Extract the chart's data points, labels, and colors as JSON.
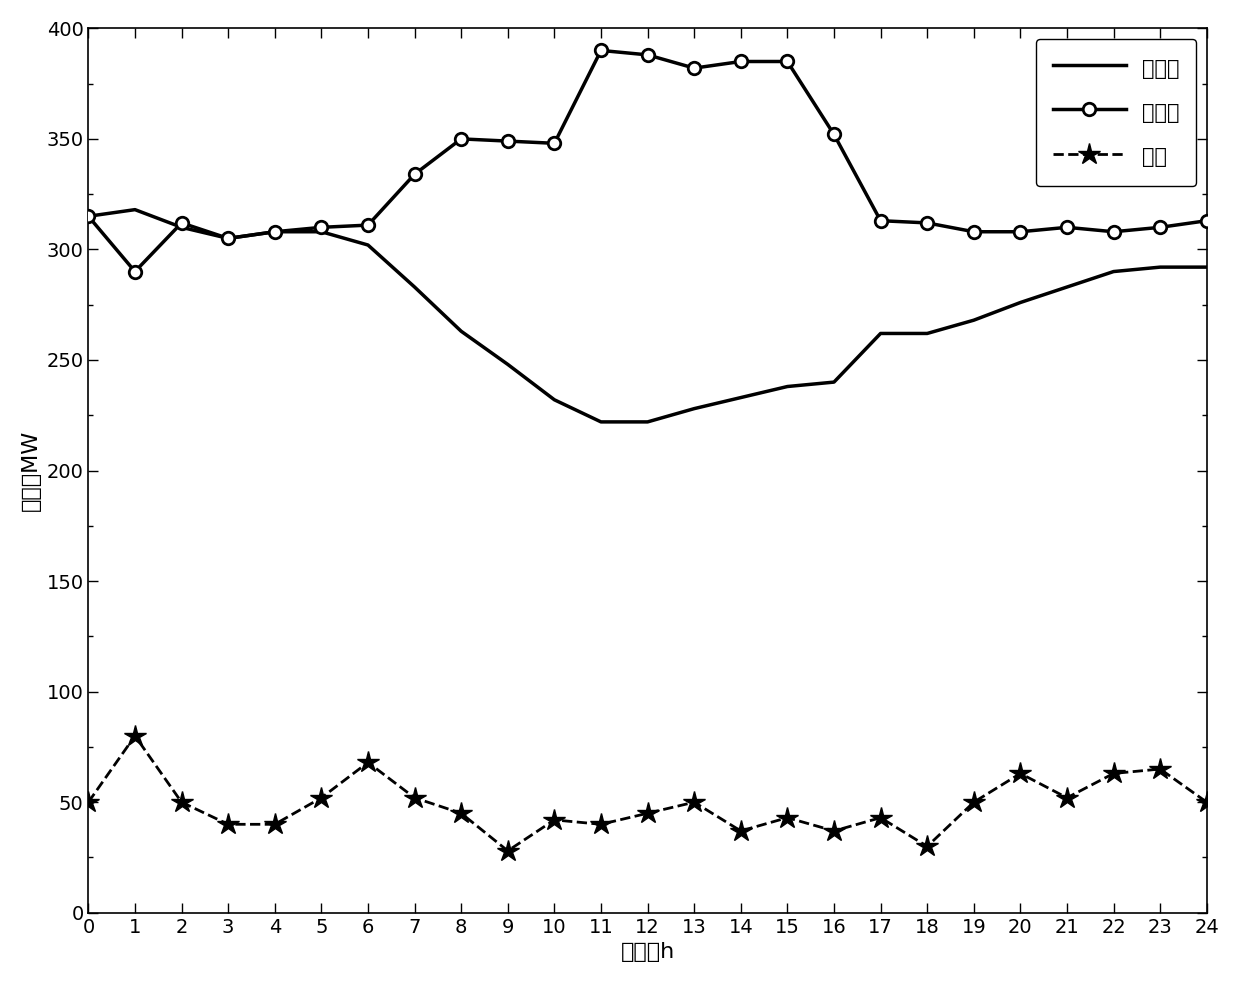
{
  "x": [
    0,
    1,
    2,
    3,
    4,
    5,
    6,
    7,
    8,
    9,
    10,
    11,
    12,
    13,
    14,
    15,
    16,
    17,
    18,
    19,
    20,
    21,
    22,
    23,
    24
  ],
  "heat_load": [
    315,
    318,
    310,
    305,
    308,
    308,
    302,
    283,
    263,
    248,
    232,
    222,
    222,
    228,
    233,
    238,
    240,
    262,
    262,
    268,
    276,
    283,
    290,
    292,
    292
  ],
  "elec_load": [
    315,
    290,
    312,
    305,
    308,
    310,
    311,
    334,
    350,
    349,
    348,
    390,
    388,
    382,
    385,
    385,
    352,
    313,
    312,
    308,
    308,
    310,
    308,
    310,
    313
  ],
  "wind_power": [
    50,
    80,
    50,
    40,
    40,
    52,
    68,
    52,
    45,
    28,
    42,
    40,
    45,
    50,
    37,
    43,
    37,
    43,
    30,
    50,
    63,
    52,
    63,
    65,
    50
  ],
  "ylabel": "功率／MW",
  "xlabel": "时间／h",
  "legend_heat": "热负荷",
  "legend_elec": "电负荷",
  "legend_wind": "风电",
  "ylim": [
    0,
    400
  ],
  "xlim": [
    0,
    24
  ],
  "yticks": [
    0,
    50,
    100,
    150,
    200,
    250,
    300,
    350,
    400
  ],
  "xticks": [
    0,
    1,
    2,
    3,
    4,
    5,
    6,
    7,
    8,
    9,
    10,
    11,
    12,
    13,
    14,
    15,
    16,
    17,
    18,
    19,
    20,
    21,
    22,
    23,
    24
  ],
  "line_color": "#000000",
  "background_color": "#ffffff",
  "label_fontsize": 16,
  "tick_fontsize": 14,
  "legend_fontsize": 15
}
